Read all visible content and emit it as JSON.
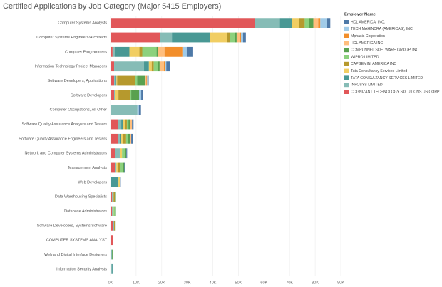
{
  "chart_data": {
    "type": "stacked-bar-horizontal",
    "title": "Certified Applications by Job Category (Major 5415 Employers)",
    "legend_title": "Employer Name",
    "legend_position": "right",
    "grid": true,
    "categories": [
      "Computer Systems Analysts",
      "Computer Systems Engineers/Architects",
      "Computer Programmers",
      "Information Technology Project Managers",
      "Software Developers, Applications",
      "Software Developers",
      "Computer Occupations, All Other",
      "Software Quality Assurance Analysts and Testers",
      "Software Quality Assurance Engineers and Testers",
      "Network and Computer Systems Administrators",
      "Management Analysts",
      "Web Developers",
      "Data Warehousing Specialists",
      "Database Administrators",
      "Software Developers, Systems Software",
      "COMPUTER SYSTEMS ANALYST",
      "Web and Digital Interface Designers",
      "Information Security Analysts"
    ],
    "xlim": [
      0,
      90
    ],
    "xticks": [
      {
        "value": 0,
        "label": "0K"
      },
      {
        "value": 10,
        "label": "10K"
      },
      {
        "value": 20,
        "label": "20K"
      },
      {
        "value": 30,
        "label": "30K"
      },
      {
        "value": 40,
        "label": "40K"
      },
      {
        "value": 50,
        "label": "50K"
      },
      {
        "value": 60,
        "label": "60K"
      },
      {
        "value": 70,
        "label": "70K"
      },
      {
        "value": 80,
        "label": "80K"
      },
      {
        "value": 90,
        "label": "90K"
      }
    ],
    "series": [
      {
        "name": "HCL AMERICA, INC.",
        "color": "#4e79a7",
        "values": [
          1.4,
          1.1,
          2.5,
          1.4,
          0.3,
          0.6,
          0.8,
          0.6,
          0.6,
          0.3,
          0.3,
          0.3,
          0,
          0,
          0,
          0,
          0,
          0
        ]
      },
      {
        "name": "TECH MAHINDRA (AMERICAS), INC",
        "color": "#a0cbe8",
        "values": [
          2.5,
          0.8,
          1.7,
          0.3,
          0.3,
          0.8,
          0.6,
          0,
          0,
          0,
          0,
          0,
          0,
          0,
          0,
          0,
          0,
          0
        ]
      },
      {
        "name": "Mphasis Corporation",
        "color": "#f28e2b",
        "values": [
          0.8,
          0.6,
          7,
          0.6,
          0.3,
          0,
          0,
          0,
          0,
          0,
          0,
          0,
          0,
          0,
          0,
          0,
          0,
          0
        ]
      },
      {
        "name": "HCL AMERICA INC",
        "color": "#ffbe7d",
        "values": [
          1.9,
          1.1,
          2.5,
          1.7,
          0.3,
          0,
          0,
          0.6,
          0.3,
          0,
          0,
          0,
          0,
          0,
          0,
          0,
          0,
          0
        ]
      },
      {
        "name": "COMPUNNEL SOFTWARE GROUP, INC",
        "color": "#59a14f",
        "values": [
          1.7,
          0.8,
          0.6,
          0.6,
          3.3,
          3.1,
          0,
          0.8,
          1.1,
          0.6,
          0.6,
          0,
          0.3,
          0.3,
          0.3,
          0,
          0.3,
          0
        ]
      },
      {
        "name": "WIPRO LIMITED",
        "color": "#8cd17d",
        "values": [
          1.7,
          1.9,
          5.6,
          1.7,
          0.8,
          0.3,
          0,
          0.6,
          0.6,
          1.1,
          1.1,
          0,
          0,
          0.6,
          0,
          0,
          0,
          0
        ]
      },
      {
        "name": "CAPGEMINI AMERICA INC",
        "color": "#b6992d",
        "values": [
          2.2,
          1.1,
          1.1,
          0.8,
          7,
          4.7,
          0,
          0.8,
          1.1,
          0,
          0.8,
          0,
          0.6,
          0,
          0.3,
          0,
          0,
          0
        ]
      },
      {
        "name": "Tata Consultancy Services Limited",
        "color": "#f1ce63",
        "values": [
          2.8,
          6.7,
          3.9,
          1.1,
          0.3,
          1.4,
          0,
          0.8,
          0.8,
          0.6,
          0.6,
          0.6,
          0,
          0.3,
          0,
          0,
          0,
          0
        ]
      },
      {
        "name": "TATA CONSULTANCY SERVICES LIMITED",
        "color": "#499894",
        "values": [
          4.7,
          14.8,
          5.8,
          1.9,
          0.3,
          0,
          0,
          0.6,
          0.6,
          0.3,
          0,
          3.1,
          0,
          0,
          0,
          0,
          0,
          0.3
        ]
      },
      {
        "name": "INFOSYS LIMITED",
        "color": "#86bcb6",
        "values": [
          9.7,
          4.5,
          0.8,
          11.7,
          0.6,
          0.3,
          10.3,
          1.4,
          0.8,
          1.7,
          0.6,
          0,
          0.6,
          0.3,
          0.3,
          0,
          0.6,
          0.3
        ]
      },
      {
        "name": "COGNIZANT TECHNOLOGY SOLUTIONS US CORP",
        "color": "#e15759",
        "values": [
          56.5,
          19.5,
          0.8,
          1.4,
          1.4,
          1.4,
          0.2,
          2.8,
          2.8,
          1.9,
          1.7,
          0,
          0.6,
          0.6,
          1.1,
          1.1,
          0,
          0.2
        ]
      }
    ]
  }
}
